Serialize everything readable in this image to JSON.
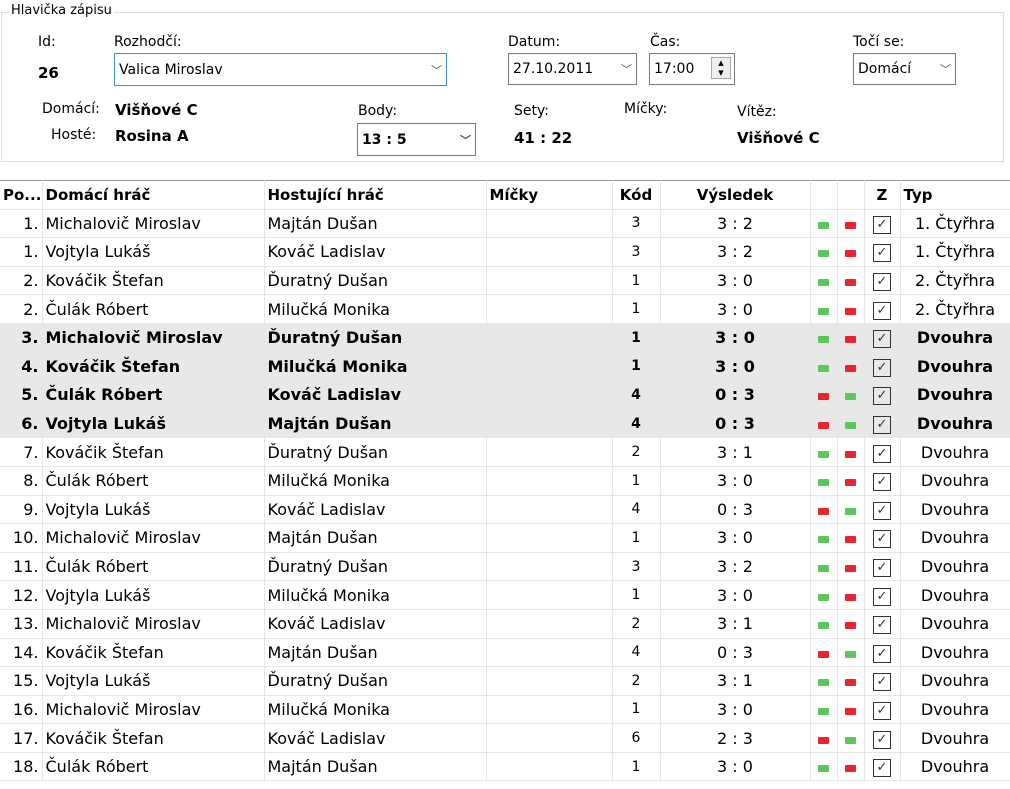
{
  "header": {
    "title": "Hlavička zápisu",
    "id_label": "Id:",
    "id": "26",
    "referee_label": "Rozhodčí:",
    "referee": "Valica Miroslav",
    "date_label": "Datum:",
    "date": "27.10.2011",
    "time_label": "Čas:",
    "time": "17:00",
    "turns_label": "Točí se:",
    "turns": "Domácí",
    "home_label": "Domácí:",
    "home": "Višňové C",
    "guest_label": "Hosté:",
    "guest": "Rosina A",
    "points_label": "Body:",
    "points": "13 : 5",
    "sets_label": "Sety:",
    "sets": "41 : 22",
    "balls_label": "Míčky:",
    "winner_label": "Vítěz:",
    "winner": "Višňové C"
  },
  "colors": {
    "win": "#5cc85c",
    "loss": "#e8252f"
  },
  "table": {
    "columns": [
      "Po...",
      "Domácí hráč",
      "Hostující hráč",
      "Míčky",
      "Kód",
      "Výsledek",
      "",
      "",
      "Z",
      "Typ"
    ],
    "rows": [
      [
        "1.",
        "Michalovič Miroslav",
        "Majtán Dušan",
        "",
        "3",
        "3 : 2",
        "1. Čtyřhra",
        false
      ],
      [
        "1.",
        "Vojtyla Lukáš",
        "Kováč Ladislav",
        "",
        "3",
        "3 : 2",
        "1. Čtyřhra",
        false
      ],
      [
        "2.",
        "Kováčik Štefan",
        "Ďuratný Dušan",
        "",
        "1",
        "3 : 0",
        "2. Čtyřhra",
        false
      ],
      [
        "2.",
        "Čulák Róbert",
        "Milučká Monika",
        "",
        "1",
        "3 : 0",
        "2. Čtyřhra",
        false
      ],
      [
        "3.",
        "Michalovič Miroslav",
        "Ďuratný Dušan",
        "",
        "1",
        "3 : 0",
        "Dvouhra",
        true
      ],
      [
        "4.",
        "Kováčik Štefan",
        "Milučká Monika",
        "",
        "1",
        "3 : 0",
        "Dvouhra",
        true
      ],
      [
        "5.",
        "Čulák Róbert",
        "Kováč Ladislav",
        "",
        "4",
        "0 : 3",
        "Dvouhra",
        true
      ],
      [
        "6.",
        "Vojtyla Lukáš",
        "Majtán Dušan",
        "",
        "4",
        "0 : 3",
        "Dvouhra",
        true
      ],
      [
        "7.",
        "Kováčik Štefan",
        "Ďuratný Dušan",
        "",
        "2",
        "3 : 1",
        "Dvouhra",
        false
      ],
      [
        "8.",
        "Čulák Róbert",
        "Milučká Monika",
        "",
        "1",
        "3 : 0",
        "Dvouhra",
        false
      ],
      [
        "9.",
        "Vojtyla Lukáš",
        "Kováč Ladislav",
        "",
        "4",
        "0 : 3",
        "Dvouhra",
        false
      ],
      [
        "10.",
        "Michalovič Miroslav",
        "Majtán Dušan",
        "",
        "1",
        "3 : 0",
        "Dvouhra",
        false
      ],
      [
        "11.",
        "Čulák Róbert",
        "Ďuratný Dušan",
        "",
        "3",
        "3 : 2",
        "Dvouhra",
        false
      ],
      [
        "12.",
        "Vojtyla Lukáš",
        "Milučká Monika",
        "",
        "1",
        "3 : 0",
        "Dvouhra",
        false
      ],
      [
        "13.",
        "Michalovič Miroslav",
        "Kováč Ladislav",
        "",
        "2",
        "3 : 1",
        "Dvouhra",
        false
      ],
      [
        "14.",
        "Kováčik Štefan",
        "Majtán Dušan",
        "",
        "4",
        "0 : 3",
        "Dvouhra",
        false
      ],
      [
        "15.",
        "Vojtyla Lukáš",
        "Ďuratný Dušan",
        "",
        "2",
        "3 : 1",
        "Dvouhra",
        false
      ],
      [
        "16.",
        "Michalovič Miroslav",
        "Milučká Monika",
        "",
        "1",
        "3 : 0",
        "Dvouhra",
        false
      ],
      [
        "17.",
        "Kováčik Štefan",
        "Kováč Ladislav",
        "",
        "6",
        "2 : 3",
        "Dvouhra",
        false
      ],
      [
        "18.",
        "Čulák Róbert",
        "Majtán Dušan",
        "",
        "1",
        "3 : 0",
        "Dvouhra",
        false
      ]
    ]
  }
}
